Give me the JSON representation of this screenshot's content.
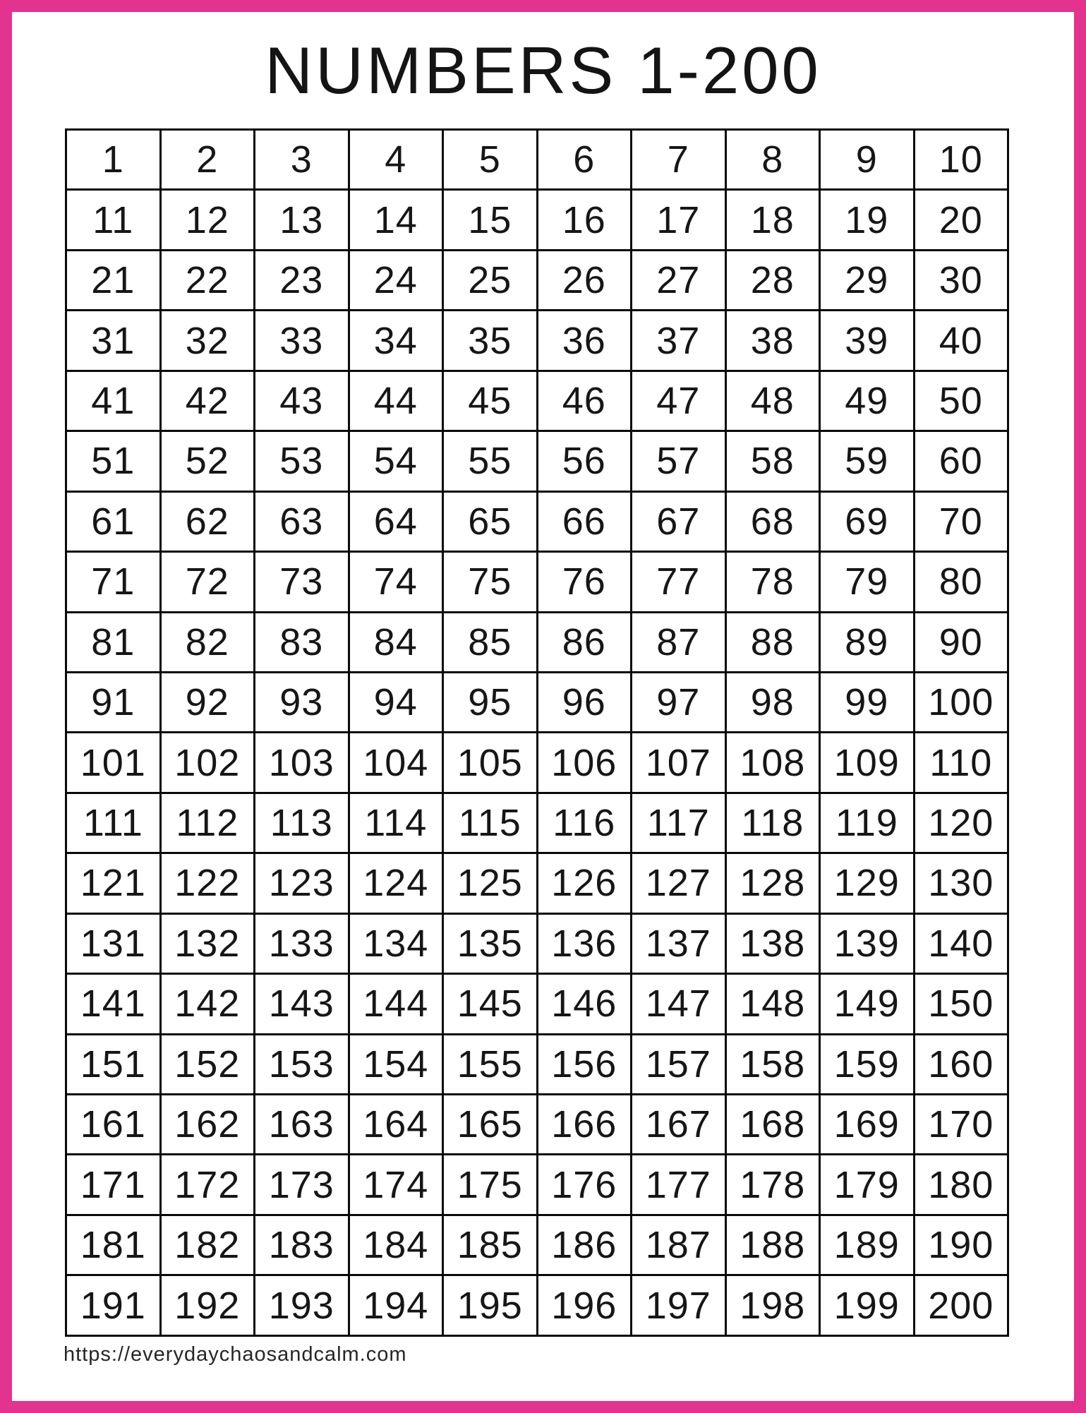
{
  "page": {
    "title": "NUMBERS 1-200",
    "source_url": "https://everydaychaosandcalm.com"
  },
  "colors": {
    "frame_pink": "#E2338F",
    "grid_line": "#0a0a0a",
    "text": "#141414"
  },
  "grid": {
    "rows": 20,
    "cols": 10,
    "first_number": 1,
    "last_number": 200,
    "cells": [
      [
        1,
        2,
        3,
        4,
        5,
        6,
        7,
        8,
        9,
        10
      ],
      [
        11,
        12,
        13,
        14,
        15,
        16,
        17,
        18,
        19,
        20
      ],
      [
        21,
        22,
        23,
        24,
        25,
        26,
        27,
        28,
        29,
        30
      ],
      [
        31,
        32,
        33,
        34,
        35,
        36,
        37,
        38,
        39,
        40
      ],
      [
        41,
        42,
        43,
        44,
        45,
        46,
        47,
        48,
        49,
        50
      ],
      [
        51,
        52,
        53,
        54,
        55,
        56,
        57,
        58,
        59,
        60
      ],
      [
        61,
        62,
        63,
        64,
        65,
        66,
        67,
        68,
        69,
        70
      ],
      [
        71,
        72,
        73,
        74,
        75,
        76,
        77,
        78,
        79,
        80
      ],
      [
        81,
        82,
        83,
        84,
        85,
        86,
        87,
        88,
        89,
        90
      ],
      [
        91,
        92,
        93,
        94,
        95,
        96,
        97,
        98,
        99,
        100
      ],
      [
        101,
        102,
        103,
        104,
        105,
        106,
        107,
        108,
        109,
        110
      ],
      [
        111,
        112,
        113,
        114,
        115,
        116,
        117,
        118,
        119,
        120
      ],
      [
        121,
        122,
        123,
        124,
        125,
        126,
        127,
        128,
        129,
        130
      ],
      [
        131,
        132,
        133,
        134,
        135,
        136,
        137,
        138,
        139,
        140
      ],
      [
        141,
        142,
        143,
        144,
        145,
        146,
        147,
        148,
        149,
        150
      ],
      [
        151,
        152,
        153,
        154,
        155,
        156,
        157,
        158,
        159,
        160
      ],
      [
        161,
        162,
        163,
        164,
        165,
        166,
        167,
        168,
        169,
        170
      ],
      [
        171,
        172,
        173,
        174,
        175,
        176,
        177,
        178,
        179,
        180
      ],
      [
        181,
        182,
        183,
        184,
        185,
        186,
        187,
        188,
        189,
        190
      ],
      [
        191,
        192,
        193,
        194,
        195,
        196,
        197,
        198,
        199,
        200
      ]
    ]
  }
}
